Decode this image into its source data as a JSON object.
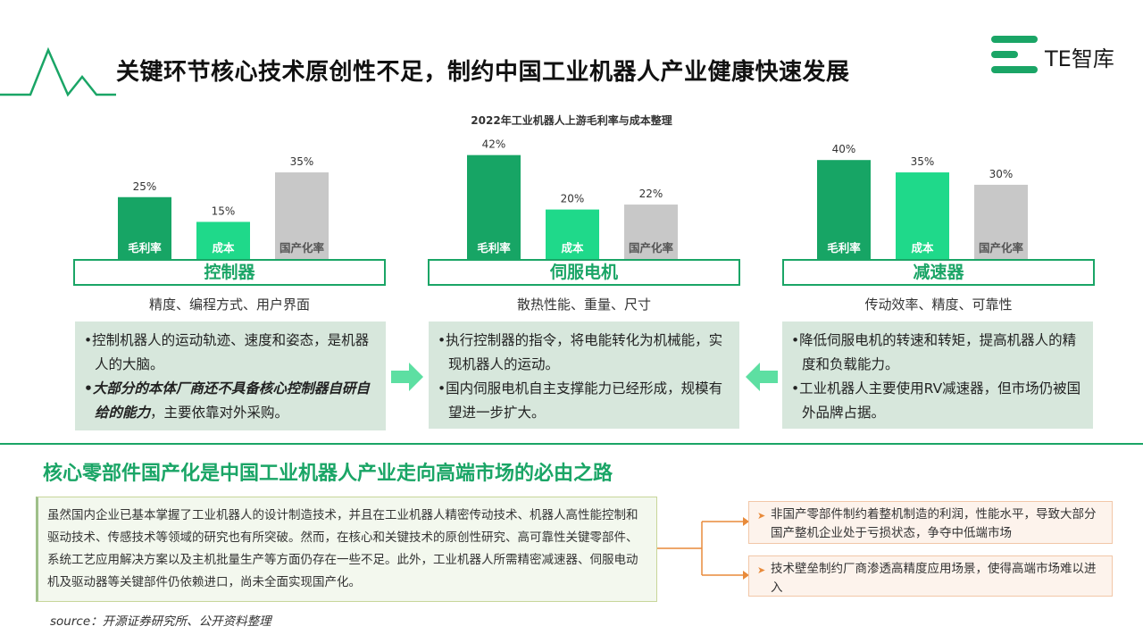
{
  "header": {
    "title": "关键环节核心技术原创性不足，制约中国工业机器人产业健康快速发展",
    "logo_text": "TE智库"
  },
  "chart_data": {
    "type": "bar",
    "title": "2022年工业机器人上游毛利率与成本整理",
    "groups": [
      {
        "name": "控制器",
        "subtitle": "精度、编程方式、用户界面",
        "bars": [
          {
            "label": "毛利率",
            "value": 25,
            "display": "25%"
          },
          {
            "label": "成本",
            "value": 15,
            "display": "15%"
          },
          {
            "label": "国产化率",
            "value": 35,
            "display": "35%"
          }
        ]
      },
      {
        "name": "伺服电机",
        "subtitle": "散热性能、重量、尺寸",
        "bars": [
          {
            "label": "毛利率",
            "value": 42,
            "display": "42%"
          },
          {
            "label": "成本",
            "value": 20,
            "display": "20%"
          },
          {
            "label": "国产化率",
            "value": 22,
            "display": "22%"
          }
        ]
      },
      {
        "name": "减速器",
        "subtitle": "传动效率、精度、可靠性",
        "bars": [
          {
            "label": "毛利率",
            "value": 40,
            "display": "40%"
          },
          {
            "label": "成本",
            "value": 35,
            "display": "35%"
          },
          {
            "label": "国产化率",
            "value": 30,
            "display": "30%"
          }
        ]
      }
    ],
    "colors": {
      "毛利率": "#17a565",
      "成本": "#1fd98a",
      "国产化率": "#c8c8c8"
    }
  },
  "notes": [
    {
      "lines": [
        {
          "text": "•控制机器人的运动轨迹、速度和姿态，是机器人的大脑。"
        },
        {
          "em": "•大部分的本体厂商还不具备核心控制器自研自给的能力",
          "text": "，主要依靠对外采购。"
        }
      ]
    },
    {
      "lines": [
        {
          "text": "•执行控制器的指令，将电能转化为机械能，实现机器人的运动。"
        },
        {
          "text": "•国内伺服电机自主支撑能力已经形成，规模有望进一步扩大。"
        }
      ]
    },
    {
      "lines": [
        {
          "text": "•降低伺服电机的转速和转矩，提高机器人的精度和负载能力。"
        },
        {
          "text": "•工业机器人主要使用RV减速器，但市场仍被国外品牌占据。"
        }
      ]
    }
  ],
  "section2": {
    "title": "核心零部件国产化是中国工业机器人产业走向高端市场的必由之路",
    "paragraph": "虽然国内企业已基本掌握了工业机器人的设计制造技术，并且在工业机器人精密传动技术、机器人高性能控制和驱动技术、传感技术等领域的研究也有所突破。然而，在核心和关键技术的原创性研究、高可靠性关键零部件、系统工艺应用解决方案以及主机批量生产等方面仍存在一些不足。此外，工业机器人所需精密减速器、伺服电动机及驱动器等关键部件仍依赖进口，尚未全面实现国产化。",
    "points": [
      "非国产零部件制约着整机制造的利润，性能水平，导致大部分国产整机企业处于亏损状态，争夺中低端市场",
      "技术壁垒制约厂商渗透高精度应用场景，使得高端市场难以进入"
    ]
  },
  "source": "source：开源证券研究所、公开资料整理"
}
